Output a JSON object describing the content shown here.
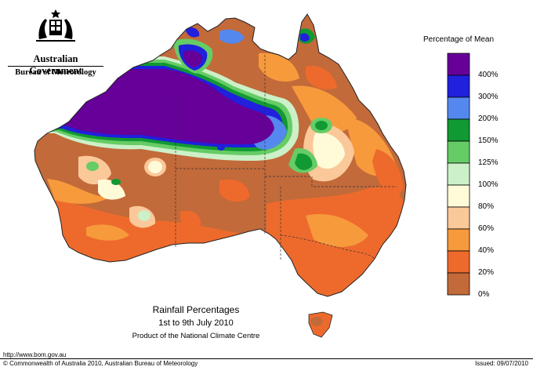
{
  "header": {
    "government": "Australian Government",
    "bureau": "Bureau of Meteorology"
  },
  "legend": {
    "title": "Percentage of Mean",
    "items": [
      {
        "label": "400%",
        "color": "#660099"
      },
      {
        "label": "300%",
        "color": "#2020dd"
      },
      {
        "label": "200%",
        "color": "#5588ee"
      },
      {
        "label": "150%",
        "color": "#119933"
      },
      {
        "label": "125%",
        "color": "#66cc66"
      },
      {
        "label": "100%",
        "color": "#ccf0c8"
      },
      {
        "label": "80%",
        "color": "#fffbd8"
      },
      {
        "label": "60%",
        "color": "#fbc89a"
      },
      {
        "label": "40%",
        "color": "#f79a3c"
      },
      {
        "label": "20%",
        "color": "#ee6a2c"
      },
      {
        "label": "0%",
        "color": "#c26a3a"
      }
    ]
  },
  "map": {
    "title": "Rainfall Percentages",
    "period": "1st to 9th July 2010",
    "product": "Product of the National Climate Centre"
  },
  "footer": {
    "url": "http://www.bom.gov.au",
    "copyright": "© Commonwealth of Australia 2010, Australian Bureau of Meteorology",
    "issued": "Issued: 09/07/2010"
  }
}
